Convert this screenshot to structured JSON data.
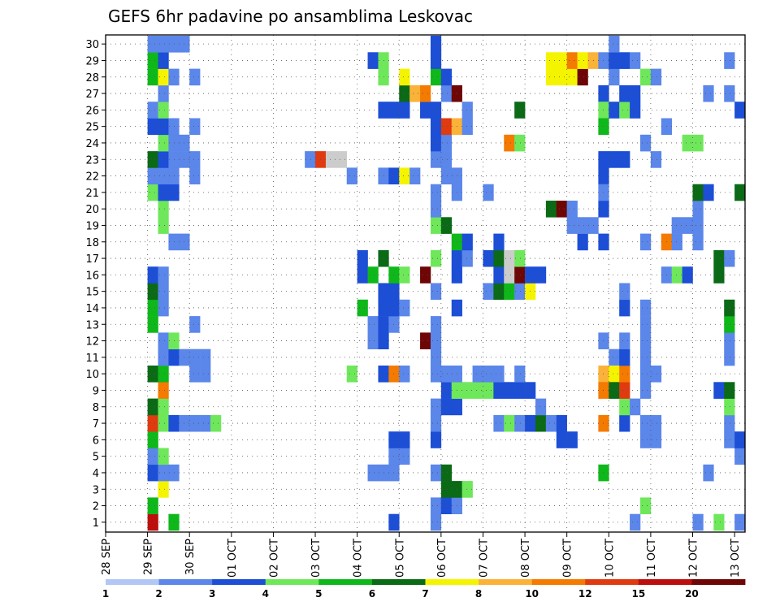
{
  "chart_data": {
    "type": "heatmap",
    "title": "GEFS 6hr padavine po ansamblima Leskovac",
    "xlabel": "",
    "ylabel": "",
    "x_tick_labels": [
      "28 SEP",
      "29 SEP",
      "30 SEP",
      "01 OCT",
      "02 OCT",
      "03 OCT",
      "04 OCT",
      "05 OCT",
      "06 OCT",
      "07 OCT",
      "08 OCT",
      "09 OCT",
      "10 OCT",
      "11 OCT",
      "12 OCT",
      "13 OCT"
    ],
    "y_tick_labels": [
      "1",
      "2",
      "3",
      "4",
      "5",
      "6",
      "7",
      "8",
      "9",
      "10",
      "11",
      "12",
      "13",
      "14",
      "15",
      "16",
      "17",
      "18",
      "19",
      "20",
      "21",
      "22",
      "23",
      "24",
      "25",
      "26",
      "27",
      "28",
      "29",
      "30"
    ],
    "xlim": [
      0,
      61
    ],
    "ylim": [
      0,
      30
    ],
    "grid": true,
    "colorbar": {
      "labels": [
        "1",
        "2",
        "3",
        "4",
        "5",
        "6",
        "7",
        "8",
        "10",
        "12",
        "15",
        "20"
      ],
      "colors": [
        "#b3c7f4",
        "#5b86ea",
        "#1c4ed6",
        "#6ee85a",
        "#0fb81a",
        "#0b6a16",
        "#f5f400",
        "#fbb238",
        "#f57a00",
        "#e03a10",
        "#bd0e0e",
        "#6e0606"
      ]
    },
    "cells": [
      [
        4,
        0,
        10
      ],
      [
        4,
        1,
        4
      ],
      [
        4,
        3,
        2
      ],
      [
        4,
        4,
        1
      ],
      [
        4,
        5,
        4
      ],
      [
        4,
        6,
        9
      ],
      [
        4,
        7,
        5
      ],
      [
        4,
        9,
        5
      ],
      [
        4,
        12,
        4
      ],
      [
        4,
        13,
        4
      ],
      [
        4,
        14,
        5
      ],
      [
        4,
        15,
        2
      ],
      [
        4,
        20,
        3
      ],
      [
        4,
        21,
        1
      ],
      [
        4,
        22,
        5
      ],
      [
        4,
        24,
        2
      ],
      [
        4,
        25,
        1
      ],
      [
        4,
        27,
        4
      ],
      [
        4,
        28,
        4
      ],
      [
        4,
        29,
        1
      ],
      [
        5,
        2,
        6
      ],
      [
        5,
        3,
        1
      ],
      [
        5,
        4,
        3
      ],
      [
        5,
        6,
        3
      ],
      [
        5,
        7,
        3
      ],
      [
        5,
        8,
        8
      ],
      [
        5,
        9,
        4
      ],
      [
        5,
        10,
        1
      ],
      [
        5,
        11,
        1
      ],
      [
        5,
        13,
        1
      ],
      [
        5,
        14,
        1
      ],
      [
        5,
        15,
        1
      ],
      [
        5,
        18,
        3
      ],
      [
        5,
        19,
        3
      ],
      [
        5,
        20,
        2
      ],
      [
        5,
        21,
        1
      ],
      [
        5,
        22,
        2
      ],
      [
        5,
        23,
        3
      ],
      [
        5,
        24,
        2
      ],
      [
        5,
        25,
        3
      ],
      [
        5,
        26,
        1
      ],
      [
        5,
        27,
        6
      ],
      [
        5,
        28,
        2
      ],
      [
        5,
        29,
        1
      ],
      [
        6,
        0,
        4
      ],
      [
        6,
        3,
        1
      ],
      [
        6,
        6,
        2
      ],
      [
        6,
        10,
        2
      ],
      [
        6,
        11,
        3
      ],
      [
        6,
        17,
        1
      ],
      [
        6,
        20,
        2
      ],
      [
        6,
        21,
        1
      ],
      [
        6,
        22,
        1
      ],
      [
        6,
        23,
        1
      ],
      [
        6,
        24,
        1
      ],
      [
        6,
        27,
        1
      ],
      [
        6,
        29,
        1
      ],
      [
        7,
        6,
        1
      ],
      [
        7,
        10,
        1
      ],
      [
        7,
        17,
        1
      ],
      [
        7,
        22,
        1
      ],
      [
        7,
        23,
        1
      ],
      [
        7,
        29,
        1
      ],
      [
        8,
        6,
        1
      ],
      [
        8,
        9,
        1
      ],
      [
        8,
        10,
        1
      ],
      [
        8,
        12,
        1
      ],
      [
        8,
        21,
        1
      ],
      [
        8,
        22,
        1
      ],
      [
        8,
        24,
        1
      ],
      [
        8,
        27,
        1
      ],
      [
        9,
        6,
        1
      ],
      [
        9,
        9,
        1
      ],
      [
        9,
        10,
        1
      ],
      [
        10,
        6,
        3
      ],
      [
        19,
        22,
        1
      ],
      [
        20,
        22,
        9
      ],
      [
        21,
        22,
        12
      ],
      [
        22,
        22,
        12
      ],
      [
        23,
        9,
        3
      ],
      [
        23,
        21,
        1
      ],
      [
        24,
        13,
        4
      ],
      [
        24,
        15,
        2
      ],
      [
        24,
        16,
        2
      ],
      [
        25,
        3,
        1
      ],
      [
        25,
        11,
        1
      ],
      [
        25,
        12,
        1
      ],
      [
        25,
        15,
        4
      ],
      [
        25,
        28,
        2
      ],
      [
        26,
        3,
        1
      ],
      [
        26,
        9,
        2
      ],
      [
        26,
        11,
        2
      ],
      [
        26,
        12,
        2
      ],
      [
        26,
        13,
        2
      ],
      [
        26,
        14,
        2
      ],
      [
        26,
        16,
        5
      ],
      [
        26,
        21,
        1
      ],
      [
        26,
        25,
        2
      ],
      [
        26,
        27,
        3
      ],
      [
        26,
        28,
        3
      ],
      [
        27,
        0,
        2
      ],
      [
        27,
        3,
        1
      ],
      [
        27,
        4,
        1
      ],
      [
        27,
        5,
        2
      ],
      [
        27,
        9,
        8
      ],
      [
        27,
        12,
        1
      ],
      [
        27,
        13,
        2
      ],
      [
        27,
        14,
        2
      ],
      [
        27,
        15,
        4
      ],
      [
        27,
        21,
        2
      ],
      [
        27,
        25,
        2
      ],
      [
        28,
        4,
        1
      ],
      [
        28,
        5,
        2
      ],
      [
        28,
        9,
        1
      ],
      [
        28,
        13,
        1
      ],
      [
        28,
        15,
        3
      ],
      [
        28,
        21,
        6
      ],
      [
        28,
        25,
        2
      ],
      [
        28,
        26,
        5
      ],
      [
        28,
        27,
        6
      ],
      [
        29,
        21,
        1
      ],
      [
        29,
        26,
        7
      ],
      [
        30,
        11,
        11
      ],
      [
        30,
        15,
        11
      ],
      [
        30,
        25,
        2
      ],
      [
        30,
        26,
        8
      ],
      [
        31,
        0,
        1
      ],
      [
        31,
        1,
        1
      ],
      [
        31,
        3,
        1
      ],
      [
        31,
        5,
        2
      ],
      [
        31,
        6,
        1
      ],
      [
        31,
        7,
        1
      ],
      [
        31,
        9,
        1
      ],
      [
        31,
        10,
        1
      ],
      [
        31,
        11,
        1
      ],
      [
        31,
        12,
        1
      ],
      [
        31,
        14,
        1
      ],
      [
        31,
        16,
        3
      ],
      [
        31,
        18,
        3
      ],
      [
        31,
        19,
        1
      ],
      [
        31,
        20,
        1
      ],
      [
        31,
        22,
        1
      ],
      [
        31,
        23,
        2
      ],
      [
        31,
        24,
        2
      ],
      [
        31,
        25,
        2
      ],
      [
        31,
        27,
        4
      ],
      [
        31,
        28,
        2
      ],
      [
        31,
        29,
        2
      ],
      [
        32,
        1,
        2
      ],
      [
        32,
        2,
        5
      ],
      [
        32,
        3,
        5
      ],
      [
        32,
        7,
        2
      ],
      [
        32,
        8,
        2
      ],
      [
        32,
        9,
        1
      ],
      [
        32,
        18,
        5
      ],
      [
        32,
        21,
        1
      ],
      [
        32,
        22,
        1
      ],
      [
        32,
        23,
        1
      ],
      [
        32,
        24,
        9
      ],
      [
        32,
        26,
        1
      ],
      [
        32,
        27,
        2
      ],
      [
        33,
        1,
        1
      ],
      [
        33,
        2,
        5
      ],
      [
        33,
        7,
        2
      ],
      [
        33,
        8,
        3
      ],
      [
        33,
        9,
        1
      ],
      [
        33,
        13,
        2
      ],
      [
        33,
        15,
        2
      ],
      [
        33,
        16,
        2
      ],
      [
        33,
        17,
        4
      ],
      [
        33,
        20,
        1
      ],
      [
        33,
        21,
        1
      ],
      [
        33,
        24,
        7
      ],
      [
        33,
        26,
        11
      ],
      [
        34,
        2,
        3
      ],
      [
        34,
        8,
        3
      ],
      [
        34,
        16,
        1
      ],
      [
        34,
        17,
        2
      ],
      [
        34,
        24,
        1
      ],
      [
        34,
        25,
        1
      ],
      [
        35,
        8,
        3
      ],
      [
        35,
        9,
        1
      ],
      [
        36,
        8,
        3
      ],
      [
        36,
        9,
        1
      ],
      [
        36,
        14,
        1
      ],
      [
        36,
        16,
        2
      ],
      [
        36,
        20,
        1
      ],
      [
        37,
        6,
        1
      ],
      [
        37,
        8,
        2
      ],
      [
        37,
        9,
        1
      ],
      [
        37,
        14,
        5
      ],
      [
        37,
        15,
        2
      ],
      [
        37,
        16,
        5
      ],
      [
        37,
        17,
        2
      ],
      [
        38,
        6,
        3
      ],
      [
        38,
        8,
        2
      ],
      [
        38,
        14,
        4
      ],
      [
        38,
        15,
        12
      ],
      [
        38,
        16,
        12
      ],
      [
        38,
        23,
        8
      ],
      [
        39,
        6,
        1
      ],
      [
        39,
        8,
        2
      ],
      [
        39,
        9,
        1
      ],
      [
        39,
        14,
        1
      ],
      [
        39,
        15,
        11
      ],
      [
        39,
        16,
        3
      ],
      [
        39,
        25,
        5
      ],
      [
        39,
        23,
        3
      ],
      [
        40,
        6,
        2
      ],
      [
        40,
        8,
        2
      ],
      [
        40,
        14,
        6
      ],
      [
        40,
        15,
        2
      ],
      [
        41,
        6,
        5
      ],
      [
        41,
        7,
        1
      ],
      [
        41,
        15,
        2
      ],
      [
        42,
        6,
        1
      ],
      [
        42,
        19,
        5
      ],
      [
        42,
        27,
        6
      ],
      [
        42,
        28,
        6
      ],
      [
        43,
        5,
        2
      ],
      [
        43,
        6,
        2
      ],
      [
        43,
        19,
        11
      ],
      [
        43,
        27,
        6
      ],
      [
        43,
        28,
        6
      ],
      [
        44,
        5,
        2
      ],
      [
        44,
        18,
        1
      ],
      [
        44,
        19,
        1
      ],
      [
        44,
        27,
        6
      ],
      [
        44,
        28,
        8
      ],
      [
        45,
        17,
        2
      ],
      [
        45,
        18,
        1
      ],
      [
        45,
        27,
        11
      ],
      [
        45,
        28,
        6
      ],
      [
        46,
        18,
        1
      ],
      [
        46,
        28,
        7
      ],
      [
        47,
        19,
        2
      ],
      [
        47,
        17,
        2
      ],
      [
        47,
        28,
        1
      ],
      [
        47,
        26,
        2
      ],
      [
        47,
        25,
        3
      ],
      [
        47,
        24,
        4
      ],
      [
        47,
        22,
        2
      ],
      [
        47,
        21,
        2
      ],
      [
        47,
        20,
        1
      ],
      [
        47,
        11,
        1
      ],
      [
        47,
        9,
        7
      ],
      [
        47,
        8,
        8
      ],
      [
        47,
        6,
        8
      ],
      [
        47,
        3,
        4
      ],
      [
        48,
        10,
        1
      ],
      [
        48,
        9,
        6
      ],
      [
        48,
        8,
        5
      ],
      [
        48,
        22,
        2
      ],
      [
        48,
        25,
        2
      ],
      [
        48,
        27,
        1
      ],
      [
        48,
        28,
        2
      ],
      [
        48,
        29,
        1
      ],
      [
        49,
        6,
        2
      ],
      [
        49,
        7,
        3
      ],
      [
        49,
        8,
        9
      ],
      [
        49,
        9,
        8
      ],
      [
        49,
        10,
        2
      ],
      [
        49,
        11,
        1
      ],
      [
        49,
        13,
        2
      ],
      [
        49,
        14,
        1
      ],
      [
        49,
        22,
        2
      ],
      [
        49,
        25,
        3
      ],
      [
        49,
        26,
        2
      ],
      [
        49,
        28,
        2
      ],
      [
        50,
        0,
        1
      ],
      [
        50,
        7,
        1
      ],
      [
        50,
        25,
        2
      ],
      [
        50,
        26,
        2
      ],
      [
        50,
        28,
        1
      ],
      [
        51,
        1,
        3
      ],
      [
        51,
        5,
        1
      ],
      [
        51,
        6,
        1
      ],
      [
        51,
        8,
        1
      ],
      [
        51,
        9,
        1
      ],
      [
        51,
        10,
        1
      ],
      [
        51,
        11,
        1
      ],
      [
        51,
        12,
        1
      ],
      [
        51,
        13,
        1
      ],
      [
        51,
        17,
        1
      ],
      [
        51,
        23,
        1
      ],
      [
        51,
        27,
        3
      ],
      [
        52,
        5,
        1
      ],
      [
        52,
        6,
        1
      ],
      [
        52,
        9,
        1
      ],
      [
        52,
        22,
        1
      ],
      [
        52,
        27,
        1
      ],
      [
        53,
        15,
        1
      ],
      [
        53,
        17,
        8
      ],
      [
        53,
        24,
        1
      ],
      [
        54,
        15,
        3
      ],
      [
        54,
        17,
        1
      ],
      [
        54,
        18,
        1
      ],
      [
        55,
        15,
        2
      ],
      [
        55,
        18,
        1
      ],
      [
        55,
        23,
        3
      ],
      [
        56,
        0,
        1
      ],
      [
        56,
        17,
        1
      ],
      [
        56,
        18,
        1
      ],
      [
        56,
        19,
        1
      ],
      [
        56,
        20,
        5
      ],
      [
        56,
        23,
        3
      ],
      [
        57,
        3,
        1
      ],
      [
        57,
        20,
        2
      ],
      [
        57,
        26,
        1
      ],
      [
        58,
        0,
        3
      ],
      [
        58,
        8,
        2
      ],
      [
        58,
        15,
        5
      ],
      [
        58,
        16,
        5
      ],
      [
        59,
        5,
        1
      ],
      [
        59,
        6,
        1
      ],
      [
        59,
        7,
        3
      ],
      [
        59,
        8,
        5
      ],
      [
        59,
        10,
        1
      ],
      [
        59,
        11,
        1
      ],
      [
        59,
        12,
        4
      ],
      [
        59,
        13,
        5
      ],
      [
        59,
        16,
        1
      ],
      [
        59,
        26,
        1
      ],
      [
        59,
        28,
        1
      ],
      [
        60,
        0,
        1
      ],
      [
        60,
        4,
        1
      ],
      [
        60,
        5,
        2
      ],
      [
        60,
        20,
        5
      ],
      [
        60,
        25,
        2
      ]
    ]
  }
}
